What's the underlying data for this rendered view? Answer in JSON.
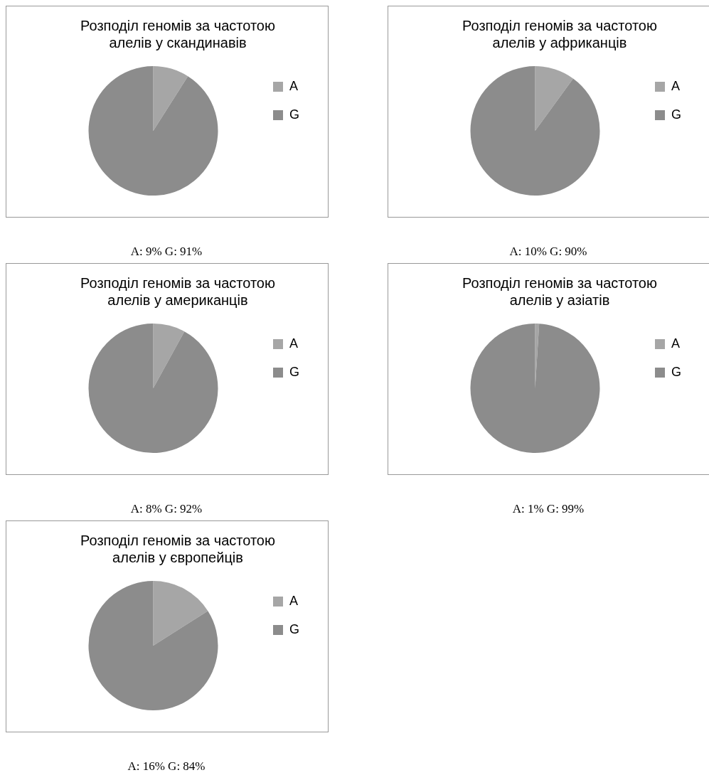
{
  "chart_data": [
    {
      "type": "pie",
      "title": [
        "Розподіл геномів за частотою",
        "алелів у скандинавів"
      ],
      "categories": [
        "A",
        "G"
      ],
      "values": [
        9,
        91
      ],
      "colors": [
        "#a6a6a6",
        "#8c8c8c"
      ],
      "legend": "right",
      "annotations": [
        "A: 9% G: 91%"
      ]
    },
    {
      "type": "pie",
      "title": [
        "Розподіл геномів за частотою",
        "алелів у африканців"
      ],
      "categories": [
        "A",
        "G"
      ],
      "values": [
        10,
        90
      ],
      "colors": [
        "#a6a6a6",
        "#8c8c8c"
      ],
      "legend": "right",
      "annotations": [
        "A: 10% G: 90%"
      ]
    },
    {
      "type": "pie",
      "title": [
        "Розподіл геномів за частотою",
        "алелів у американців"
      ],
      "categories": [
        "A",
        "G"
      ],
      "values": [
        8,
        92
      ],
      "colors": [
        "#a6a6a6",
        "#8c8c8c"
      ],
      "legend": "right",
      "annotations": [
        "A: 8% G: 92%"
      ]
    },
    {
      "type": "pie",
      "title": [
        "Розподіл геномів за частотою",
        "алелів у азіатів"
      ],
      "categories": [
        "A",
        "G"
      ],
      "values": [
        1,
        99
      ],
      "colors": [
        "#a6a6a6",
        "#8c8c8c"
      ],
      "legend": "right",
      "annotations": [
        "A: 1% G: 99%"
      ]
    },
    {
      "type": "pie",
      "title": [
        "Розподіл геномів за частотою",
        "алелів у європейців"
      ],
      "categories": [
        "A",
        "G"
      ],
      "values": [
        16,
        84
      ],
      "colors": [
        "#a6a6a6",
        "#8c8c8c"
      ],
      "legend": "right",
      "annotations": [
        "A: 16% G: 84%"
      ]
    }
  ]
}
